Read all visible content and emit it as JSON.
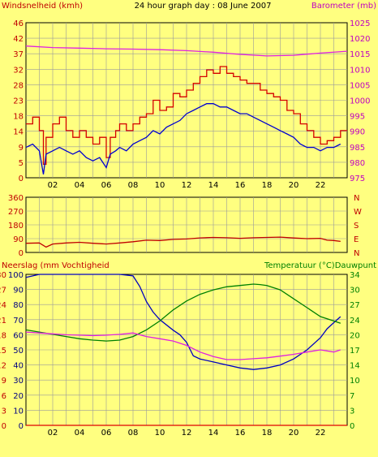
{
  "header": {
    "left_label": "Windsnelheid (kmh)",
    "title": "24 hour graph day : 08 June 2007",
    "right_label": "Barometer (mb)"
  },
  "x_ticks": [
    "02",
    "04",
    "06",
    "08",
    "10",
    "12",
    "14",
    "16",
    "18",
    "20",
    "22"
  ],
  "colors": {
    "background": "#FFFF80",
    "plot_bg": "#FFFF80",
    "grid": "#9A9A9A",
    "wind": "#D40000",
    "wind_avg": "#0000D0",
    "barometer": "#E020E0",
    "direction": "#C00000",
    "humidity": "#0000C0",
    "temperature": "#008000",
    "dewpoint": "#E020E0",
    "rain": "#E00000",
    "left_axis_text": "#C00000",
    "right_axis_text": "#C000C0",
    "temp_axis_text": "#008000"
  },
  "chart_data": [
    {
      "type": "line",
      "name": "wind-barometer",
      "x_label": "hour",
      "xlim": [
        0,
        24
      ],
      "left_axis": {
        "label": "Windsnelheid (kmh)",
        "ylim": [
          0,
          46
        ],
        "ticks": [
          "0",
          "5",
          "9",
          "14",
          "18",
          "23",
          "28",
          "32",
          "37",
          "42",
          "46"
        ]
      },
      "right_axis": {
        "label": "Barometer (mb)",
        "ylim": [
          975,
          1025
        ],
        "ticks": [
          "975",
          "980",
          "985",
          "990",
          "995",
          "1000",
          "1005",
          "1010",
          "1015",
          "1020",
          "1025"
        ]
      },
      "series": [
        {
          "key": "wind",
          "axis": "left",
          "step": true,
          "x": [
            0,
            0.5,
            1.0,
            1.3,
            1.5,
            2.0,
            2.5,
            3.0,
            3.5,
            4.0,
            4.5,
            5.0,
            5.5,
            6.0,
            6.3,
            6.7,
            7.0,
            7.5,
            8.0,
            8.5,
            9.0,
            9.5,
            10.0,
            10.5,
            11.0,
            11.5,
            12.0,
            12.5,
            13.0,
            13.5,
            14.0,
            14.5,
            15.0,
            15.5,
            16.0,
            16.5,
            17.0,
            17.5,
            18.0,
            18.5,
            19.0,
            19.5,
            20.0,
            20.5,
            21.0,
            21.5,
            22.0,
            22.5,
            23.0,
            23.5
          ],
          "y": [
            16,
            18,
            14,
            4,
            12,
            16,
            18,
            14,
            12,
            14,
            12,
            10,
            12,
            6,
            12,
            14,
            16,
            14,
            16,
            18,
            19,
            23,
            20,
            21,
            25,
            24,
            26,
            28,
            30,
            32,
            31,
            33,
            31,
            30,
            29,
            28,
            28,
            26,
            25,
            24,
            23,
            20,
            19,
            16,
            14,
            12,
            10,
            11,
            12,
            14
          ]
        },
        {
          "key": "wind_avg",
          "axis": "left",
          "step": false,
          "x": [
            0,
            0.5,
            1.0,
            1.3,
            1.5,
            2.0,
            2.5,
            3.0,
            3.5,
            4.0,
            4.5,
            5.0,
            5.5,
            6.0,
            6.3,
            6.7,
            7.0,
            7.5,
            8.0,
            8.5,
            9.0,
            9.5,
            10.0,
            10.5,
            11.0,
            11.5,
            12.0,
            12.5,
            13.0,
            13.5,
            14.0,
            14.5,
            15.0,
            15.5,
            16.0,
            16.5,
            17.0,
            17.5,
            18.0,
            18.5,
            19.0,
            19.5,
            20.0,
            20.5,
            21.0,
            21.5,
            22.0,
            22.5,
            23.0,
            23.5
          ],
          "y": [
            9,
            10,
            8,
            1,
            7,
            8,
            9,
            8,
            7,
            8,
            6,
            5,
            6,
            3,
            7,
            8,
            9,
            8,
            10,
            11,
            12,
            14,
            13,
            15,
            16,
            17,
            19,
            20,
            21,
            22,
            22,
            21,
            21,
            20,
            19,
            19,
            18,
            17,
            16,
            15,
            14,
            13,
            12,
            10,
            9,
            9,
            8,
            9,
            9,
            10
          ]
        },
        {
          "key": "barometer",
          "axis": "right",
          "step": false,
          "x": [
            0,
            2,
            4,
            6,
            8,
            10,
            12,
            14,
            16,
            18,
            20,
            22,
            24
          ],
          "y": [
            1017.5,
            1017.0,
            1016.8,
            1016.6,
            1016.5,
            1016.3,
            1016.0,
            1015.5,
            1014.8,
            1014.3,
            1014.5,
            1015.2,
            1015.8
          ]
        }
      ]
    },
    {
      "type": "line",
      "name": "wind-direction",
      "x_label": "hour",
      "xlim": [
        0,
        24
      ],
      "left_axis": {
        "ylim": [
          0,
          360
        ],
        "ticks": [
          "0",
          "90",
          "180",
          "270",
          "360"
        ]
      },
      "right_axis": {
        "ticks": [
          "N",
          "E",
          "S",
          "W",
          "N"
        ]
      },
      "series": [
        {
          "key": "direction",
          "axis": "left",
          "step": false,
          "x": [
            0,
            1,
            1.5,
            2,
            3,
            4,
            5,
            6,
            7,
            8,
            9,
            10,
            11,
            12,
            13,
            14,
            15,
            16,
            17,
            18,
            19,
            20,
            21,
            22,
            22.5,
            23,
            23.5
          ],
          "y": [
            60,
            62,
            35,
            55,
            62,
            66,
            60,
            55,
            62,
            70,
            80,
            78,
            85,
            88,
            95,
            98,
            96,
            92,
            96,
            98,
            100,
            94,
            90,
            92,
            80,
            78,
            72
          ]
        }
      ]
    },
    {
      "type": "line",
      "name": "rain-humidity-temperature",
      "x_label": "hour",
      "xlim": [
        0,
        24
      ],
      "left_axis": {
        "label": "Neerslag (mm Vochtigheid",
        "ylim": [
          0,
          100
        ],
        "ticks": [
          "0",
          "10",
          "20",
          "30",
          "40",
          "50",
          "60",
          "70",
          "80",
          "90",
          "100"
        ],
        "rain_ticks": [
          "0",
          "3",
          "6",
          "9",
          "12",
          "15",
          "18",
          "21",
          "24",
          "27",
          "30"
        ]
      },
      "right_axis": {
        "label": "Temperatuur (°C)Dauwpunt",
        "ylim": [
          0,
          34
        ],
        "ticks": [
          "0",
          "3",
          "7",
          "10",
          "14",
          "17",
          "20",
          "24",
          "27",
          "30",
          "34"
        ]
      },
      "series": [
        {
          "key": "rain",
          "axis": "left",
          "step": false,
          "x": [
            0,
            24
          ],
          "y": [
            0,
            0
          ]
        },
        {
          "key": "humidity",
          "axis": "left",
          "step": false,
          "x": [
            0,
            0.5,
            1,
            2,
            3,
            4,
            5,
            6,
            7,
            8,
            8.5,
            9,
            9.5,
            10,
            11,
            11.5,
            12,
            12.5,
            13,
            14,
            15,
            16,
            17,
            18,
            19,
            20,
            21,
            22,
            22.5,
            23,
            23.5
          ],
          "y": [
            98,
            99,
            100,
            100,
            100,
            100,
            100,
            100,
            100,
            99,
            92,
            82,
            75,
            70,
            63,
            60,
            55,
            46,
            44,
            42,
            40,
            38,
            37,
            38,
            40,
            44,
            50,
            58,
            64,
            68,
            72
          ]
        },
        {
          "key": "temperature",
          "axis": "right",
          "step": false,
          "x": [
            0,
            1,
            2,
            3,
            4,
            5,
            6,
            7,
            8,
            9,
            10,
            11,
            12,
            13,
            14,
            15,
            16,
            17,
            17.5,
            18,
            19,
            20,
            21,
            22,
            23,
            23.5
          ],
          "y": [
            21.5,
            21.0,
            20.5,
            20.0,
            19.5,
            19.2,
            19.0,
            19.2,
            20.0,
            21.5,
            23.5,
            26.0,
            28.0,
            29.5,
            30.5,
            31.2,
            31.5,
            31.8,
            31.7,
            31.5,
            30.5,
            28.5,
            26.5,
            24.5,
            23.5,
            23.0
          ]
        },
        {
          "key": "dewpoint",
          "axis": "right",
          "step": false,
          "x": [
            0,
            1,
            2,
            3,
            4,
            5,
            6,
            7,
            8,
            9,
            10,
            11,
            12,
            13,
            14,
            15,
            16,
            17,
            18,
            19,
            20,
            21,
            22,
            23,
            23.5
          ],
          "y": [
            21.0,
            20.8,
            20.6,
            20.4,
            20.3,
            20.2,
            20.3,
            20.5,
            20.8,
            20.0,
            19.5,
            19.0,
            18.0,
            16.5,
            15.5,
            14.8,
            14.8,
            15.0,
            15.2,
            15.6,
            16.0,
            16.5,
            17.0,
            16.5,
            17.0
          ]
        }
      ]
    }
  ]
}
